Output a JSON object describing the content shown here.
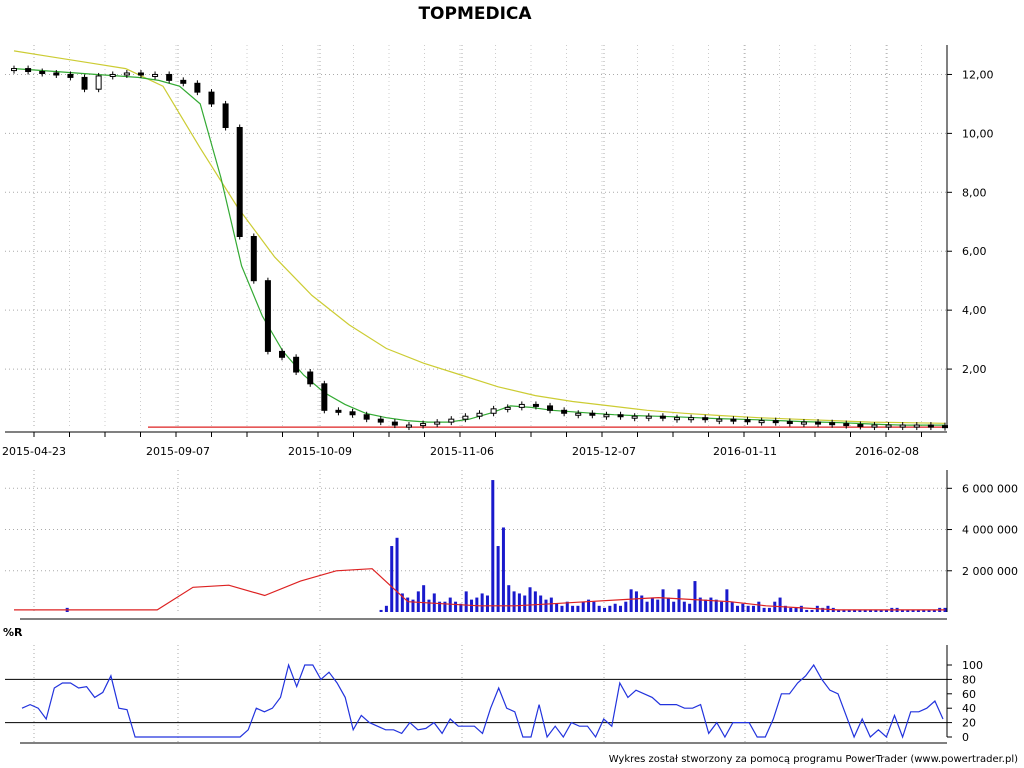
{
  "chart_data": [
    {
      "type": "candlestick",
      "title": "TOPMEDICA",
      "x_tick_labels": [
        "2015-04-23",
        "2015-09-07",
        "2015-10-09",
        "2015-11-06",
        "2015-12-07",
        "2016-01-11",
        "2016-02-08"
      ],
      "y_tick_labels": [
        "12,00",
        "10,00",
        "8,00",
        "6,00",
        "4,00",
        "2,00"
      ],
      "y_ticks": [
        12,
        10,
        8,
        6,
        4,
        2
      ],
      "ylim": [
        0,
        13
      ],
      "grid": true,
      "close_approx": [
        12.2,
        12.1,
        12.05,
        12.0,
        11.9,
        11.5,
        11.95,
        12.0,
        12.05,
        12.0,
        12.0,
        11.8,
        11.7,
        11.4,
        11.0,
        10.2,
        6.5,
        5.0,
        2.6,
        2.4,
        1.9,
        1.5,
        0.6,
        0.55,
        0.45,
        0.3,
        0.2,
        0.1,
        0.1,
        0.15,
        0.2,
        0.3,
        0.4,
        0.5,
        0.65,
        0.7,
        0.8,
        0.75,
        0.6,
        0.5,
        0.5,
        0.45,
        0.45,
        0.4,
        0.4,
        0.4,
        0.35,
        0.35,
        0.35,
        0.3,
        0.3,
        0.28,
        0.25,
        0.25,
        0.22,
        0.2,
        0.2,
        0.18,
        0.15,
        0.12,
        0.1,
        0.1,
        0.1,
        0.1,
        0.1,
        0.08,
        0.07
      ],
      "series": [
        {
          "name": "",
          "color": "#33aa33",
          "values": [
            12.2,
            12.15,
            12.1,
            12.05,
            12.0,
            11.95,
            11.9,
            11.8,
            11.6,
            11.0,
            8.5,
            5.5,
            3.8,
            2.6,
            1.8,
            1.2,
            0.8,
            0.5,
            0.35,
            0.25,
            0.2,
            0.2,
            0.3,
            0.5,
            0.75,
            0.7,
            0.6,
            0.55,
            0.5,
            0.45,
            0.42,
            0.4,
            0.38,
            0.35,
            0.32,
            0.3,
            0.28,
            0.25,
            0.22,
            0.2,
            0.18,
            0.15,
            0.12,
            0.1,
            0.1,
            0.1
          ]
        },
        {
          "name": "",
          "color": "#cccc33",
          "values": [
            12.8,
            12.6,
            12.4,
            12.2,
            11.6,
            9.5,
            7.5,
            5.8,
            4.5,
            3.5,
            2.7,
            2.2,
            1.8,
            1.4,
            1.1,
            0.9,
            0.75,
            0.6,
            0.5,
            0.42,
            0.35,
            0.3,
            0.25,
            0.2,
            0.18,
            0.16
          ]
        }
      ],
      "support_line": {
        "value": 0.03,
        "color": "#dd2222"
      }
    },
    {
      "type": "bar",
      "title": "",
      "y_tick_labels": [
        "6 000 000",
        "4 000 000",
        "2 000 000"
      ],
      "y_ticks": [
        6000000,
        4000000,
        2000000
      ],
      "ylim": [
        0,
        6500000
      ],
      "grid": true,
      "values": [
        0,
        0,
        0,
        0,
        0,
        0,
        0,
        0,
        0,
        0,
        200000,
        0,
        0,
        0,
        0,
        0,
        0,
        0,
        0,
        0,
        0,
        0,
        0,
        0,
        0,
        0,
        0,
        0,
        0,
        0,
        0,
        0,
        0,
        0,
        0,
        0,
        0,
        0,
        0,
        0,
        0,
        0,
        0,
        0,
        0,
        0,
        0,
        0,
        0,
        0,
        0,
        0,
        0,
        0,
        0,
        0,
        0,
        0,
        0,
        0,
        0,
        0,
        0,
        0,
        0,
        0,
        0,
        0,
        0,
        100000,
        300000,
        3200000,
        3600000,
        900000,
        700000,
        600000,
        1000000,
        1300000,
        600000,
        900000,
        500000,
        500000,
        700000,
        500000,
        400000,
        1000000,
        600000,
        700000,
        900000,
        800000,
        6400000,
        3200000,
        4100000,
        1300000,
        1000000,
        900000,
        800000,
        1200000,
        1000000,
        800000,
        600000,
        700000,
        400000,
        300000,
        500000,
        300000,
        300000,
        500000,
        600000,
        500000,
        300000,
        200000,
        300000,
        400000,
        300000,
        500000,
        1100000,
        1000000,
        800000,
        500000,
        700000,
        600000,
        1100000,
        700000,
        500000,
        1100000,
        500000,
        400000,
        1500000,
        700000,
        600000,
        700000,
        600000,
        500000,
        1100000,
        500000,
        300000,
        400000,
        300000,
        300000,
        500000,
        200000,
        200000,
        500000,
        700000,
        300000,
        200000,
        200000,
        300000,
        100000,
        100000,
        300000,
        200000,
        300000,
        200000,
        100000,
        100000,
        100000,
        100000,
        100000,
        100000,
        100000,
        100000,
        100000,
        100000,
        200000,
        200000,
        100000,
        100000,
        100000,
        100000,
        100000,
        100000,
        100000,
        200000,
        200000
      ],
      "average_series": {
        "name": "",
        "color": "#dd2222",
        "values": [
          100000,
          100000,
          100000,
          100000,
          100000,
          1200000,
          1300000,
          800000,
          1500000,
          2000000,
          2100000,
          500000,
          400000,
          300000,
          300000,
          400000,
          500000,
          600000,
          700000,
          600000,
          500000,
          300000,
          200000,
          100000,
          100000,
          100000,
          100000
        ]
      }
    },
    {
      "type": "line",
      "title": "%R",
      "y_tick_labels": [
        "100",
        "80",
        "60",
        "40",
        "20",
        "0"
      ],
      "y_ticks": [
        100,
        80,
        60,
        40,
        20,
        0
      ],
      "ylim": [
        0,
        100
      ],
      "reference_lines": [
        80,
        20
      ],
      "series": [
        {
          "name": "",
          "color": "#2233dd",
          "values": [
            40,
            45,
            40,
            25,
            68,
            75,
            75,
            68,
            70,
            55,
            62,
            85,
            40,
            38,
            0,
            0,
            0,
            0,
            0,
            0,
            0,
            0,
            0,
            0,
            0,
            0,
            0,
            0,
            10,
            40,
            35,
            40,
            55,
            100,
            70,
            100,
            100,
            80,
            90,
            75,
            55,
            10,
            30,
            20,
            15,
            10,
            10,
            5,
            20,
            10,
            12,
            20,
            5,
            25,
            15,
            15,
            15,
            5,
            40,
            68,
            40,
            35,
            0,
            0,
            45,
            0,
            15,
            0,
            20,
            15,
            15,
            0,
            25,
            15,
            75,
            55,
            65,
            60,
            55,
            45,
            45,
            45,
            40,
            40,
            45,
            5,
            20,
            0,
            20,
            20,
            20,
            0,
            0,
            25,
            60,
            60,
            75,
            85,
            100,
            80,
            65,
            60,
            30,
            0,
            25,
            0,
            10,
            0,
            30,
            0,
            35,
            35,
            40,
            50,
            25
          ]
        }
      ]
    }
  ],
  "footer": {
    "credit": "Wykres został stworzony za pomocą programu PowerTrader (www.powertrader.pl)"
  }
}
